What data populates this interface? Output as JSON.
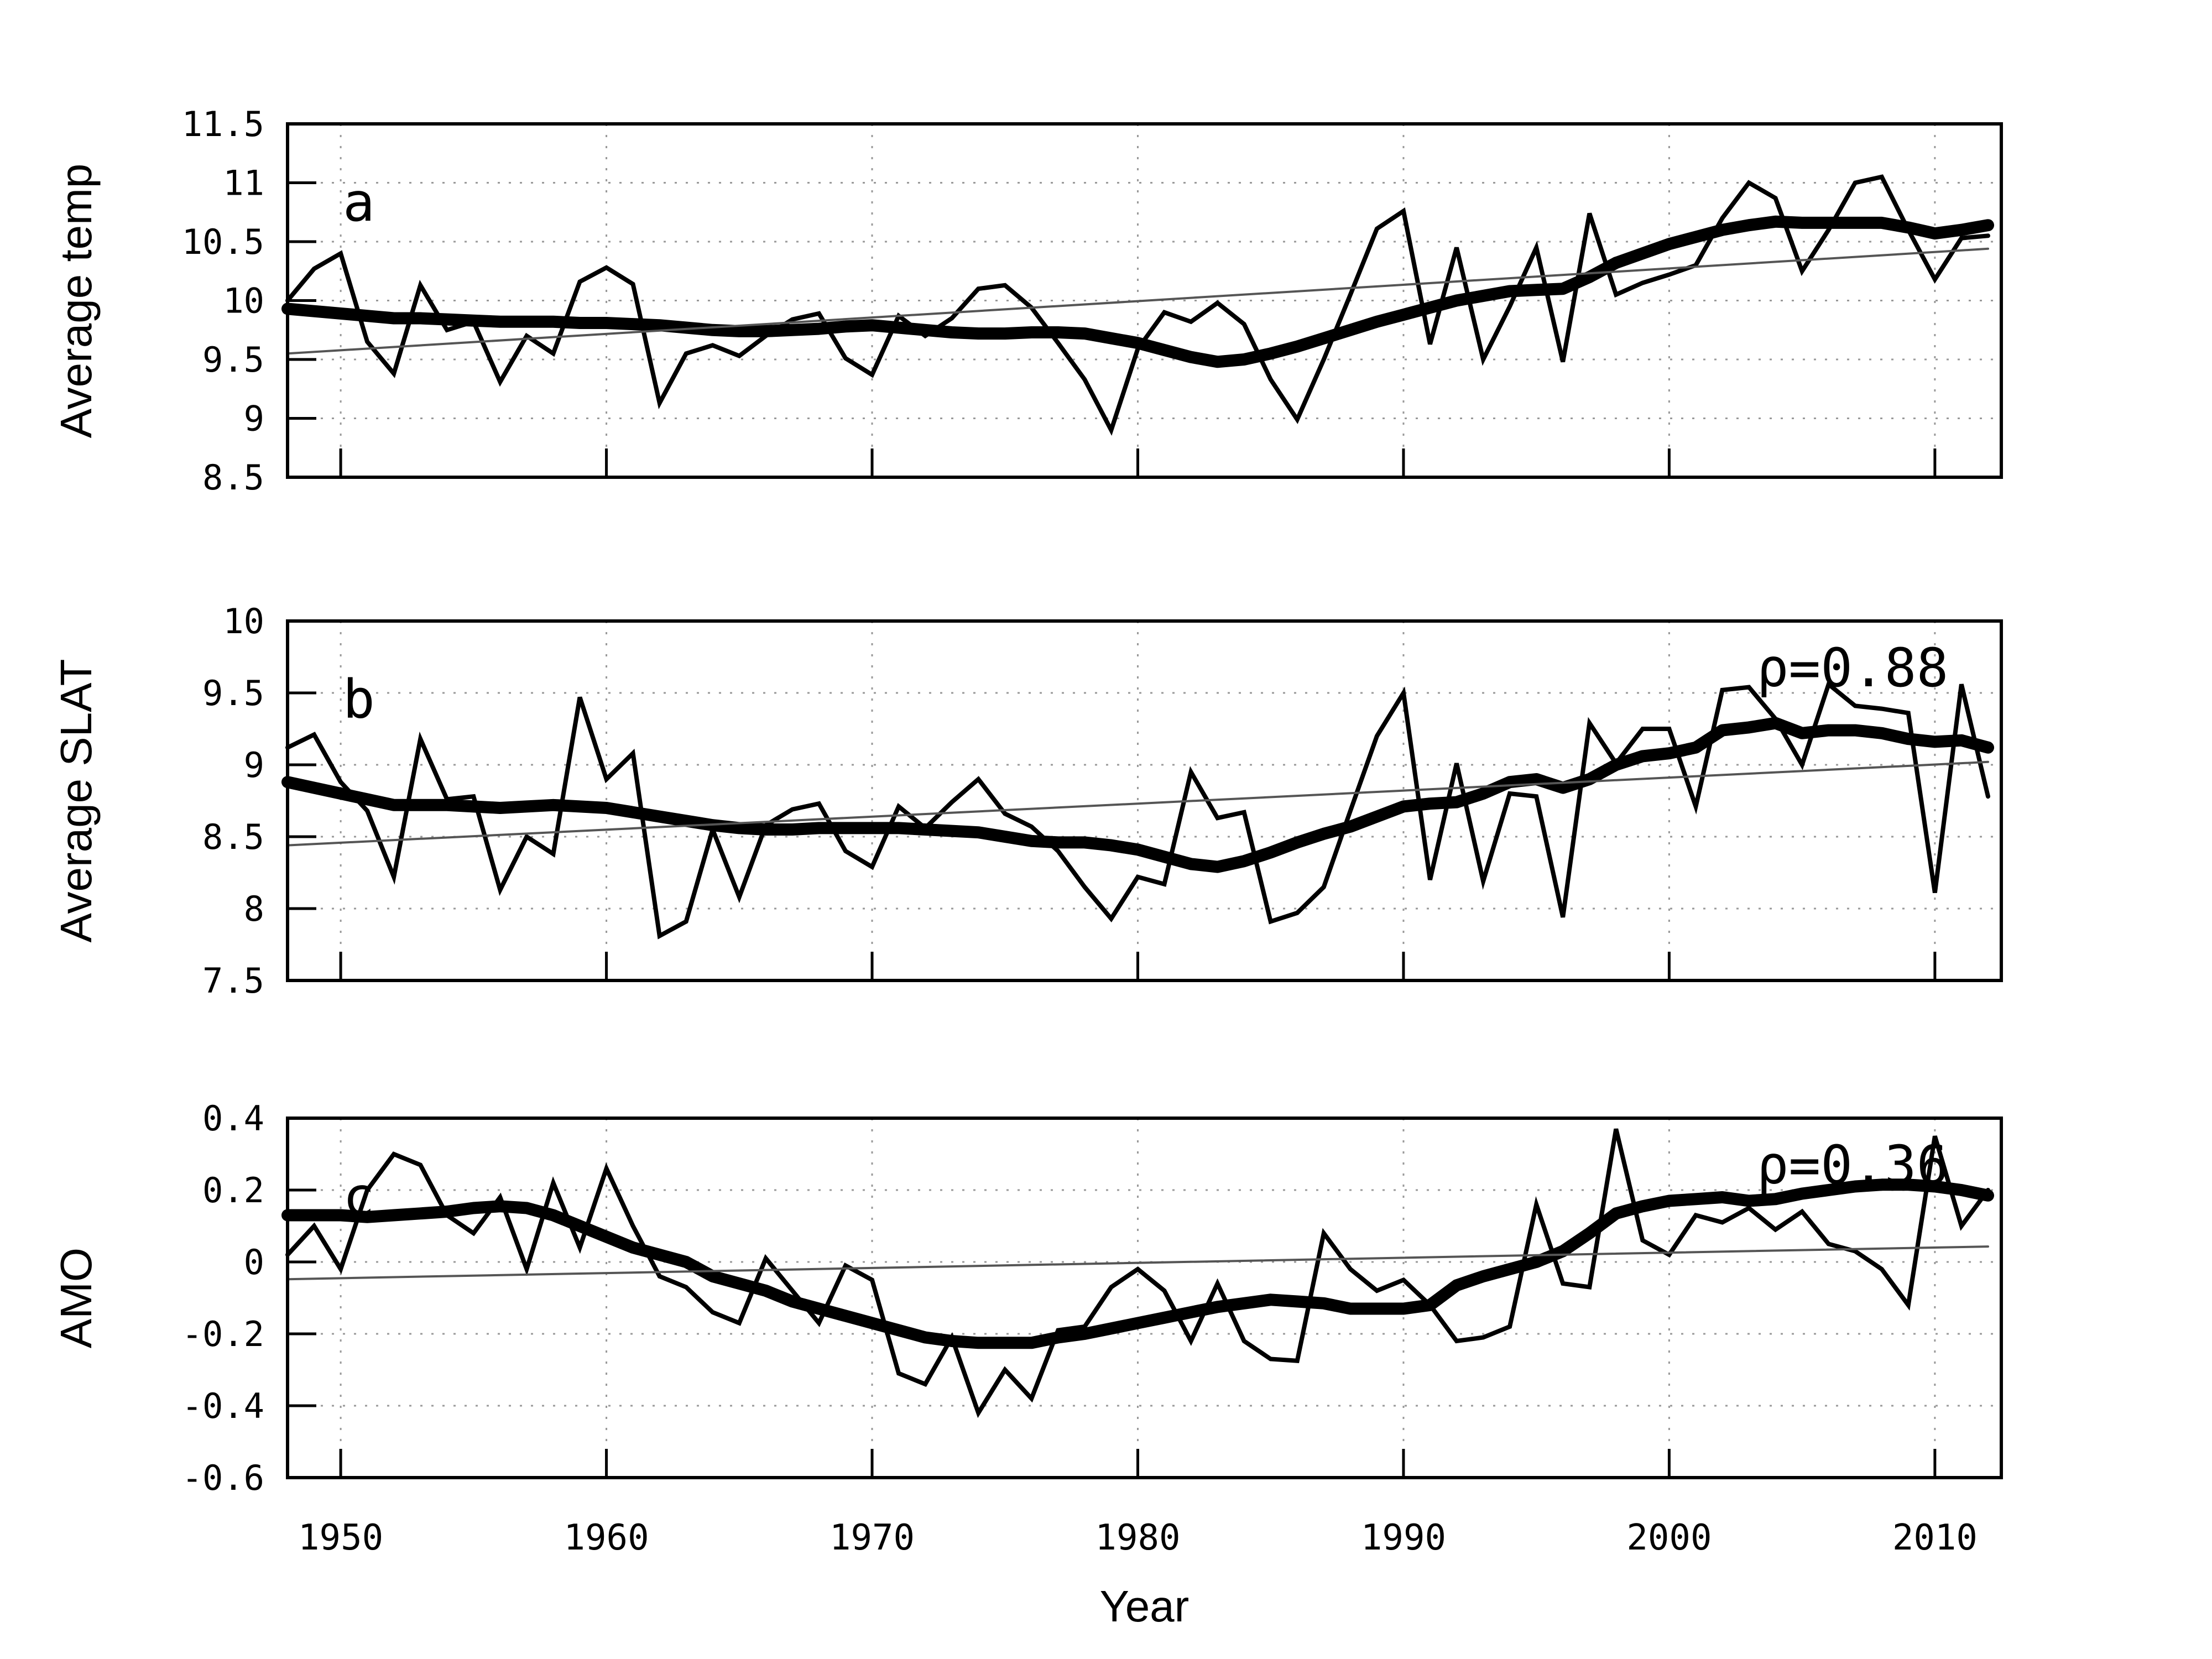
{
  "figure": {
    "xlabel": "Year",
    "background": "#ffffff",
    "line_color": "#000000",
    "trend_color": "#555555",
    "grid_color": "#999999",
    "x_range": [
      1948,
      2012
    ],
    "xtick_values": [
      1950,
      1960,
      1970,
      1980,
      1990,
      2000,
      2010
    ],
    "xtick_labels": [
      "1950",
      "1960",
      "1970",
      "1980",
      "1990",
      "2000",
      "2010"
    ]
  },
  "chart_data": [
    {
      "type": "line",
      "panel_letter": "a",
      "ylabel": "Average temp",
      "ylim": [
        8.5,
        11.5
      ],
      "ytick_values": [
        11.5,
        11,
        10.5,
        10,
        9.5,
        9,
        8.5
      ],
      "ytick_labels": [
        "11.5",
        "11",
        "10.5",
        "10",
        "9.5",
        "9",
        "8.5"
      ],
      "annotation": "",
      "x_start": 1948,
      "series": [
        {
          "name": "annual",
          "values": [
            10.0,
            10.27,
            10.4,
            9.65,
            9.38,
            10.13,
            9.75,
            9.82,
            9.31,
            9.7,
            9.55,
            10.16,
            10.28,
            10.14,
            9.13,
            9.55,
            9.62,
            9.53,
            9.7,
            9.84,
            9.89,
            9.51,
            9.37,
            9.87,
            9.7,
            9.85,
            10.1,
            10.13,
            9.94,
            9.64,
            9.33,
            8.9,
            9.59,
            9.9,
            9.82,
            9.98,
            9.8,
            9.33,
            8.99,
            9.5,
            10.05,
            10.61,
            10.76,
            9.63,
            10.45,
            9.5,
            9.95,
            10.45,
            9.48,
            10.74,
            10.05,
            10.15,
            10.22,
            10.3,
            10.7,
            11.0,
            10.87,
            10.25,
            10.6,
            11.0,
            11.05,
            10.6,
            10.18,
            10.53,
            10.55
          ]
        },
        {
          "name": "smoothed",
          "values": [
            9.93,
            9.91,
            9.89,
            9.87,
            9.85,
            9.85,
            9.84,
            9.83,
            9.82,
            9.82,
            9.82,
            9.81,
            9.81,
            9.8,
            9.79,
            9.77,
            9.75,
            9.74,
            9.74,
            9.75,
            9.76,
            9.78,
            9.79,
            9.77,
            9.75,
            9.73,
            9.72,
            9.72,
            9.73,
            9.73,
            9.72,
            9.68,
            9.64,
            9.58,
            9.52,
            9.48,
            9.5,
            9.55,
            9.61,
            9.68,
            9.75,
            9.82,
            9.88,
            9.94,
            10.0,
            10.04,
            10.08,
            10.09,
            10.1,
            10.2,
            10.32,
            10.4,
            10.48,
            10.54,
            10.6,
            10.64,
            10.67,
            10.66,
            10.66,
            10.66,
            10.66,
            10.62,
            10.57,
            10.6,
            10.64
          ]
        },
        {
          "name": "trend",
          "x": [
            1948,
            2012
          ],
          "values": [
            9.55,
            10.44
          ]
        }
      ]
    },
    {
      "type": "line",
      "panel_letter": "b",
      "ylabel": "Average SLAT",
      "ylim": [
        7.5,
        10
      ],
      "ytick_values": [
        10,
        9.5,
        9,
        8.5,
        8,
        7.5
      ],
      "ytick_labels": [
        "10",
        "9.5",
        "9",
        "8.5",
        "8",
        "7.5"
      ],
      "annotation": "ρ=0.88",
      "x_start": 1948,
      "series": [
        {
          "name": "annual",
          "values": [
            9.12,
            9.21,
            8.88,
            8.68,
            8.22,
            9.18,
            8.76,
            8.78,
            8.13,
            8.5,
            8.38,
            9.47,
            8.9,
            9.08,
            7.81,
            7.91,
            8.55,
            8.08,
            8.58,
            8.69,
            8.73,
            8.4,
            8.29,
            8.71,
            8.56,
            8.74,
            8.9,
            8.66,
            8.57,
            8.4,
            8.15,
            7.93,
            8.22,
            8.17,
            8.95,
            8.63,
            8.67,
            7.91,
            7.97,
            8.15,
            8.68,
            9.2,
            9.5,
            8.2,
            9.01,
            8.19,
            8.8,
            8.78,
            7.94,
            9.29,
            9.01,
            9.25,
            9.25,
            8.71,
            9.52,
            9.54,
            9.32,
            9.0,
            9.56,
            9.41,
            9.39,
            9.36,
            8.11,
            9.56,
            8.78
          ]
        },
        {
          "name": "smoothed",
          "values": [
            8.88,
            8.84,
            8.8,
            8.76,
            8.72,
            8.72,
            8.72,
            8.71,
            8.7,
            8.71,
            8.72,
            8.71,
            8.7,
            8.67,
            8.64,
            8.61,
            8.58,
            8.56,
            8.55,
            8.55,
            8.56,
            8.56,
            8.56,
            8.56,
            8.55,
            8.54,
            8.53,
            8.5,
            8.47,
            8.46,
            8.46,
            8.44,
            8.41,
            8.36,
            8.31,
            8.29,
            8.33,
            8.39,
            8.46,
            8.52,
            8.57,
            8.64,
            8.71,
            8.73,
            8.74,
            8.8,
            8.88,
            8.9,
            8.84,
            8.9,
            9.0,
            9.06,
            9.08,
            9.12,
            9.24,
            9.26,
            9.29,
            9.22,
            9.24,
            9.24,
            9.22,
            9.18,
            9.16,
            9.17,
            9.12
          ]
        },
        {
          "name": "trend",
          "x": [
            1948,
            2012
          ],
          "values": [
            8.44,
            9.02
          ]
        }
      ]
    },
    {
      "type": "line",
      "panel_letter": "c",
      "ylabel": "AMO",
      "ylim": [
        -0.6,
        0.4
      ],
      "ytick_values": [
        0.4,
        0.2,
        0,
        -0.2,
        -0.4,
        -0.6
      ],
      "ytick_labels": [
        "0.4",
        "0.2",
        "0",
        "-0.2",
        "-0.4",
        "-0.6"
      ],
      "annotation": "ρ=0.36",
      "x_start": 1948,
      "series": [
        {
          "name": "annual",
          "values": [
            0.02,
            0.1,
            -0.02,
            0.2,
            0.3,
            0.27,
            0.13,
            0.08,
            0.18,
            -0.02,
            0.22,
            0.04,
            0.26,
            0.1,
            -0.04,
            -0.07,
            -0.14,
            -0.17,
            0.01,
            -0.08,
            -0.17,
            -0.01,
            -0.05,
            -0.31,
            -0.34,
            -0.21,
            -0.42,
            -0.3,
            -0.38,
            -0.19,
            -0.18,
            -0.07,
            -0.02,
            -0.08,
            -0.22,
            -0.06,
            -0.22,
            -0.27,
            -0.275,
            0.08,
            -0.02,
            -0.08,
            -0.05,
            -0.12,
            -0.22,
            -0.21,
            -0.18,
            0.16,
            -0.06,
            -0.07,
            0.37,
            0.06,
            0.02,
            0.13,
            0.11,
            0.15,
            0.09,
            0.14,
            0.05,
            0.03,
            -0.02,
            -0.12,
            0.35,
            0.1,
            0.2
          ]
        },
        {
          "name": "smoothed",
          "values": [
            0.13,
            0.13,
            0.13,
            0.125,
            0.13,
            0.135,
            0.14,
            0.15,
            0.155,
            0.15,
            0.13,
            0.1,
            0.07,
            0.04,
            0.02,
            0.0,
            -0.04,
            -0.06,
            -0.08,
            -0.11,
            -0.13,
            -0.15,
            -0.17,
            -0.19,
            -0.21,
            -0.22,
            -0.225,
            -0.225,
            -0.225,
            -0.21,
            -0.2,
            -0.185,
            -0.17,
            -0.155,
            -0.14,
            -0.125,
            -0.115,
            -0.105,
            -0.11,
            -0.115,
            -0.13,
            -0.13,
            -0.13,
            -0.12,
            -0.065,
            -0.04,
            -0.02,
            0.0,
            0.03,
            0.08,
            0.135,
            0.155,
            0.17,
            0.175,
            0.18,
            0.17,
            0.175,
            0.19,
            0.2,
            0.21,
            0.215,
            0.215,
            0.21,
            0.2,
            0.185
          ]
        },
        {
          "name": "trend",
          "x": [
            1948,
            2012
          ],
          "values": [
            -0.048,
            0.043
          ]
        }
      ]
    }
  ]
}
